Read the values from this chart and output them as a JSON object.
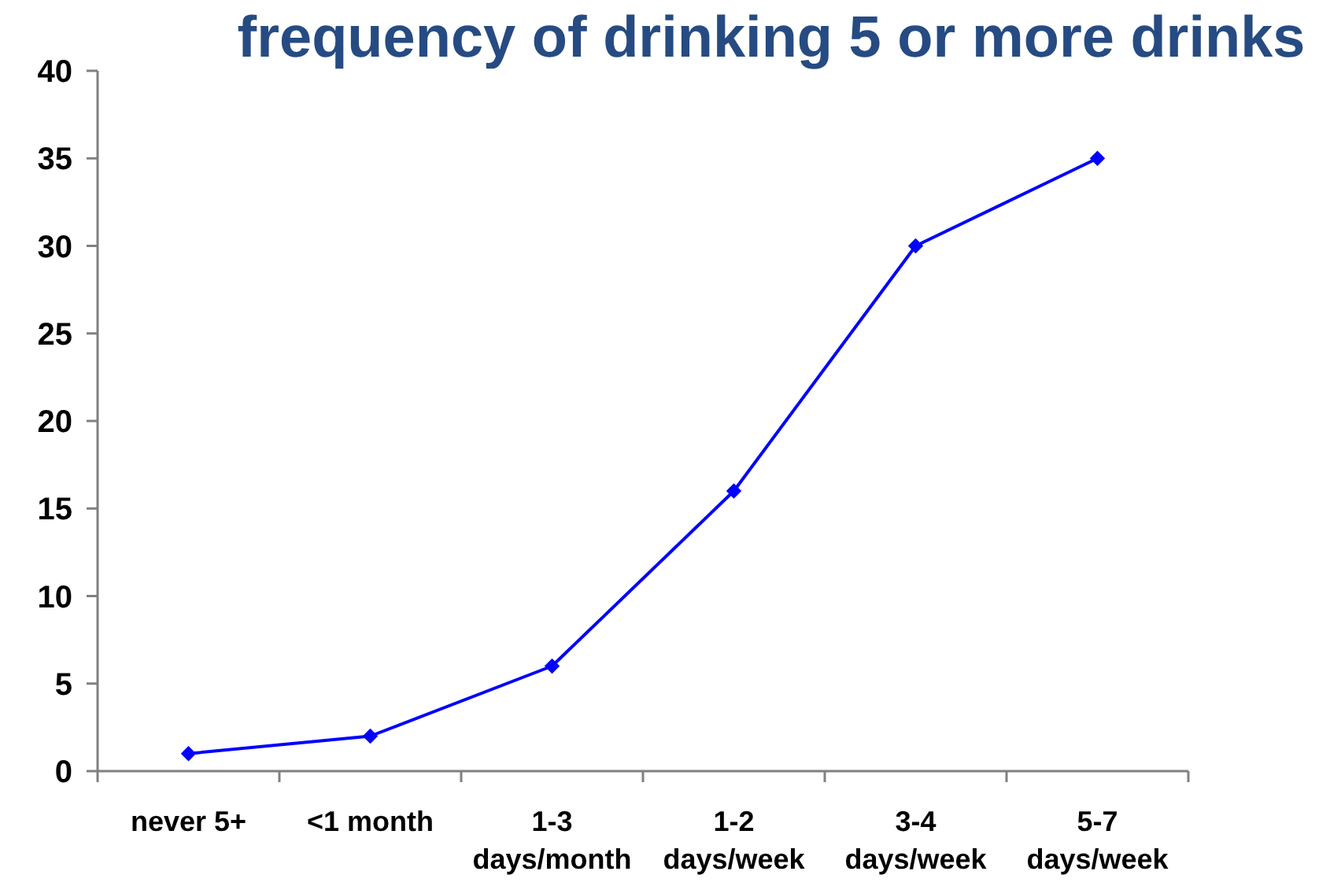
{
  "chart_data": {
    "type": "line",
    "title": "frequency of drinking 5 or more drinks",
    "categories": [
      "never 5+",
      "<1 month",
      "1-3\ndays/month",
      "1-2\ndays/week",
      "3-4\ndays/week",
      "5-7\ndays/week"
    ],
    "series": [
      {
        "color": "#0000ff",
        "values": [
          1,
          2,
          6,
          16,
          30,
          35
        ]
      }
    ],
    "ylim": [
      0,
      40
    ],
    "yticks": [
      0,
      5,
      10,
      15,
      20,
      25,
      30,
      35,
      40
    ],
    "marker": "diamond",
    "line_style": "solid"
  }
}
